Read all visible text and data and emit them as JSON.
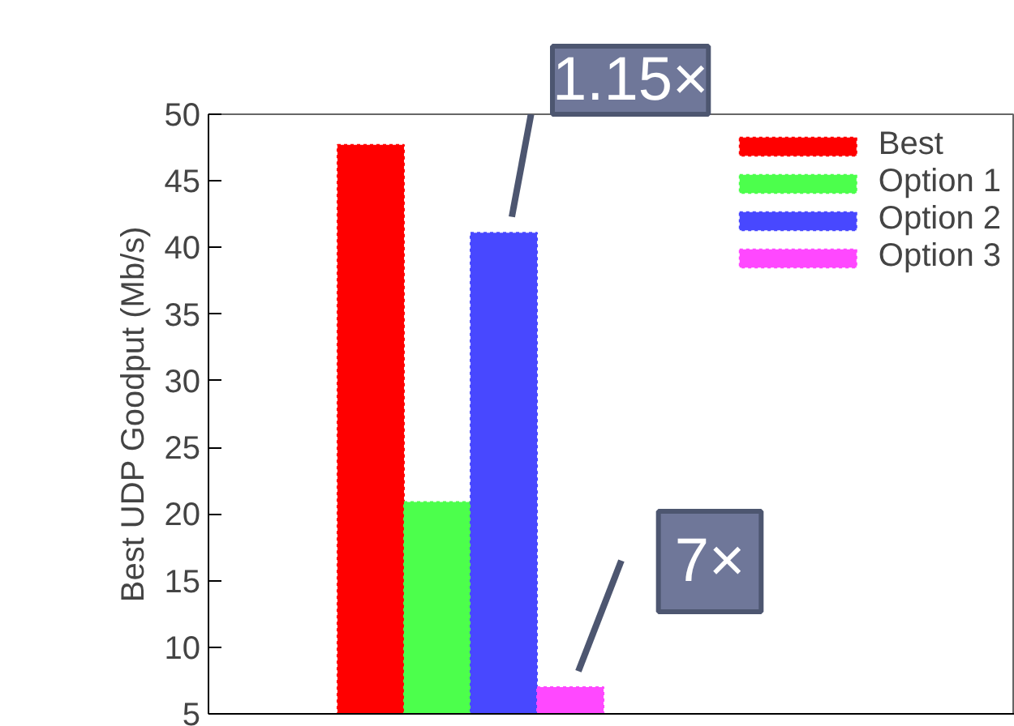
{
  "chart_data": {
    "type": "bar",
    "ylabel": "Best UDP Goodput (Mb/s)",
    "categories": [
      null
    ],
    "series": [
      {
        "name": "Best",
        "color": "#ff0000",
        "values": [
          47.7
        ]
      },
      {
        "name": "Option 1",
        "color": "#4cff4c",
        "values": [
          20.9
        ]
      },
      {
        "name": "Option 2",
        "color": "#4848ff",
        "values": [
          41.1
        ]
      },
      {
        "name": "Option 3",
        "color": "#ff48ff",
        "values": [
          7.0
        ]
      }
    ],
    "ylim": [
      5,
      50
    ],
    "yticks": [
      5,
      10,
      15,
      20,
      25,
      30,
      35,
      40,
      45,
      50
    ],
    "tick_labels": "y",
    "grid": false,
    "legend": "top right",
    "annotations": [
      "1.15×",
      "7×"
    ]
  }
}
